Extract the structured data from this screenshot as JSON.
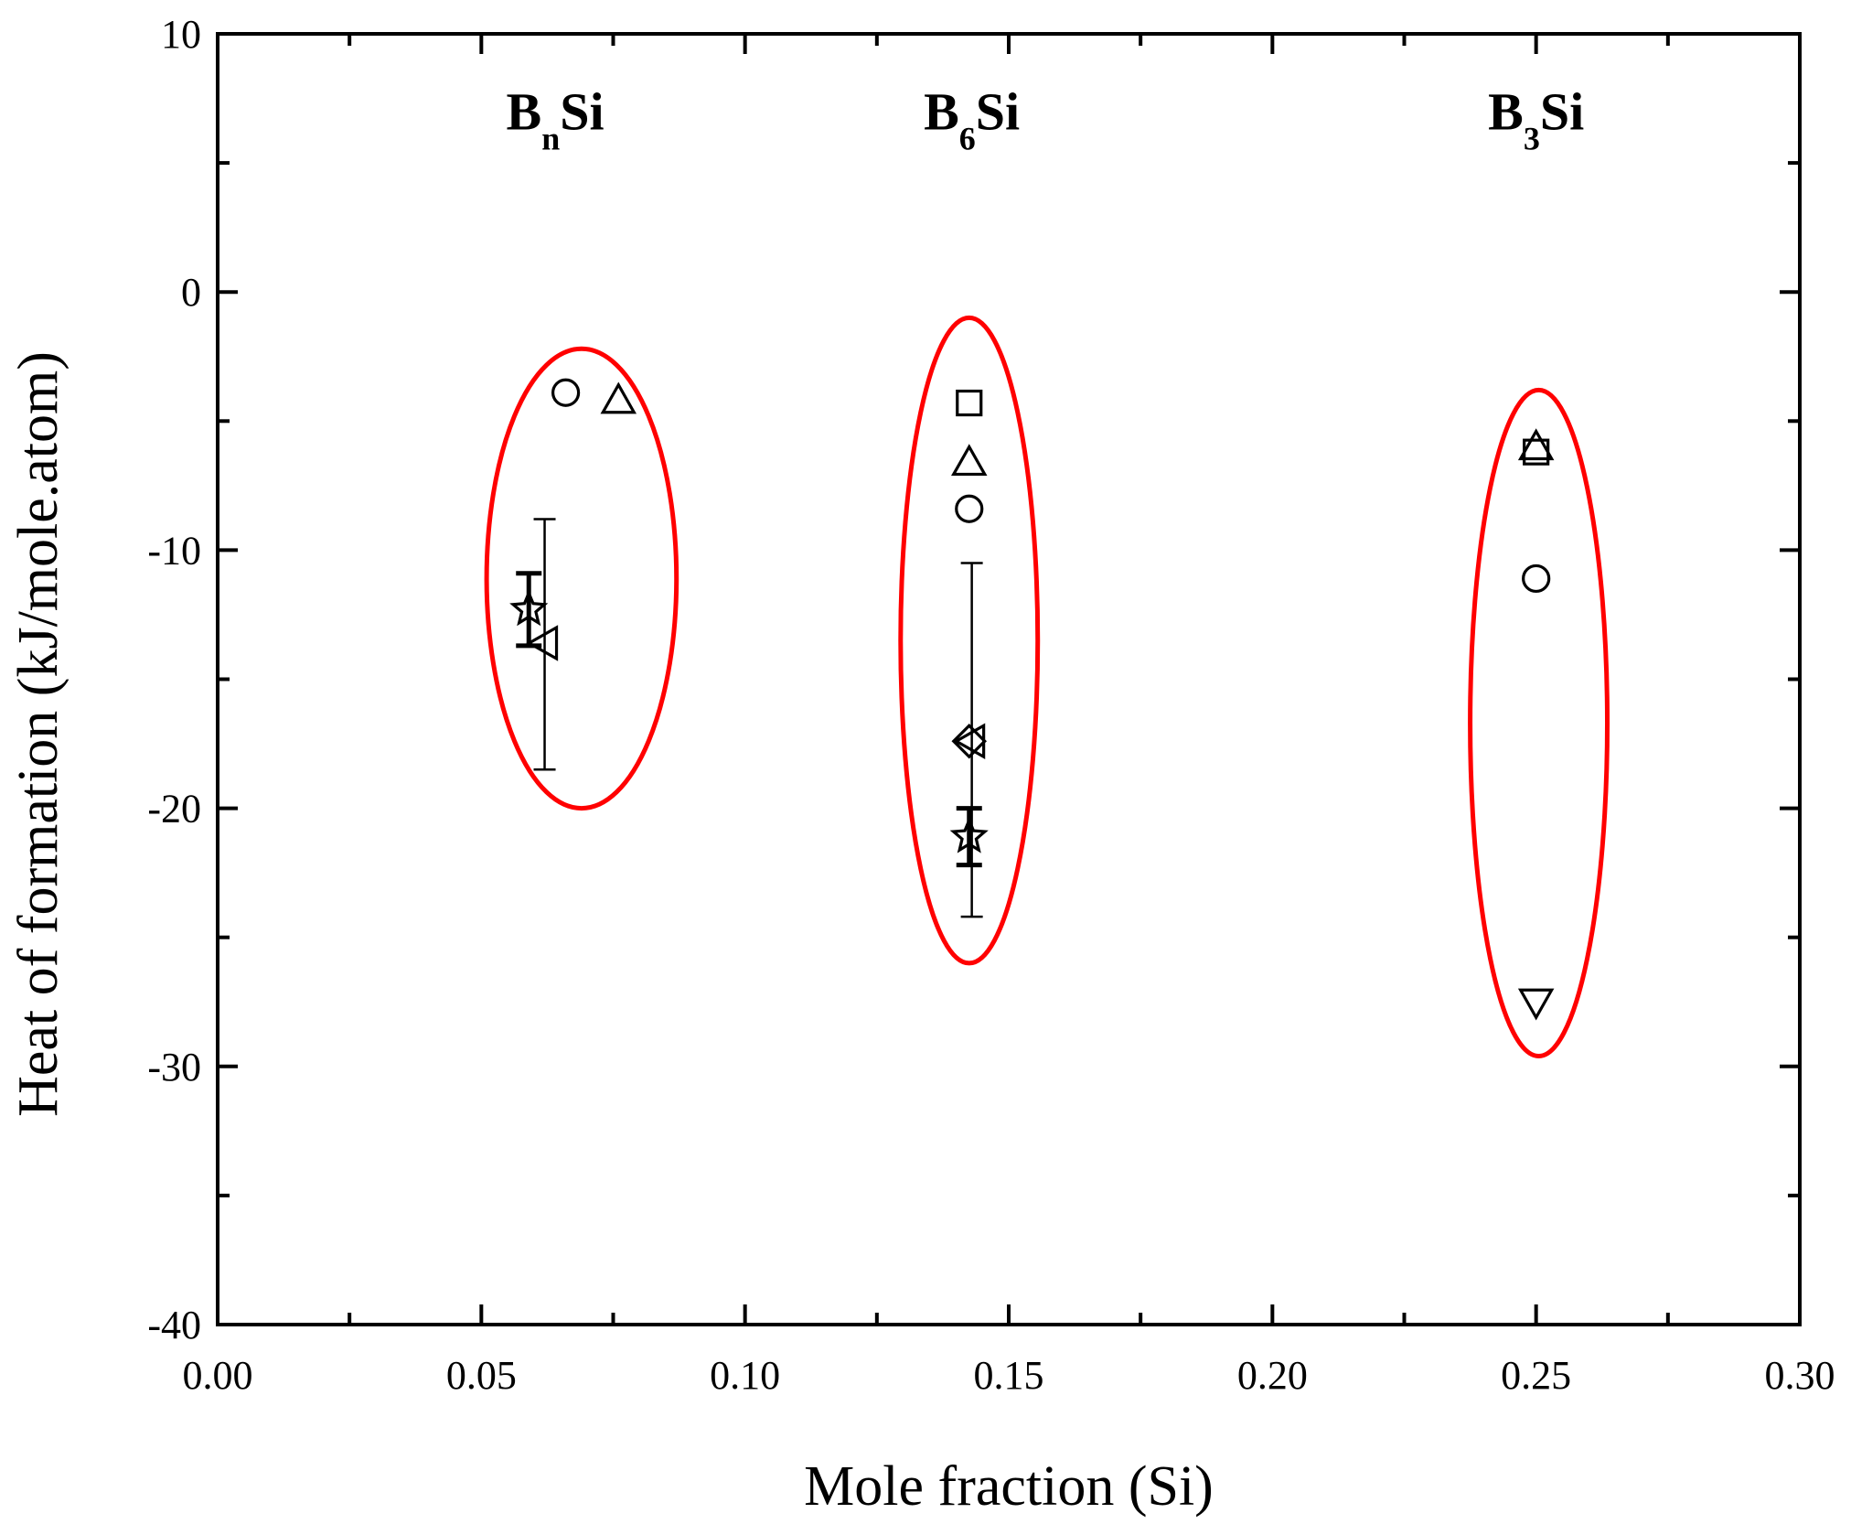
{
  "chart_data": {
    "type": "scatter",
    "title": "",
    "xlabel": "Mole fraction (Si)",
    "ylabel": "Heat of formation (kJ/mole.atom)",
    "xlim": [
      0.0,
      0.3
    ],
    "ylim": [
      -40,
      10
    ],
    "x_ticks": [
      0.0,
      0.05,
      0.1,
      0.15,
      0.2,
      0.25,
      0.3
    ],
    "x_tick_labels": [
      "0.00",
      "0.05",
      "0.10",
      "0.15",
      "0.20",
      "0.25",
      "0.30"
    ],
    "y_ticks": [
      10,
      0,
      -10,
      -20,
      -30,
      -40
    ],
    "y_tick_labels": [
      "10",
      "0",
      "-10",
      "-20",
      "-30",
      "-40"
    ],
    "grid": false,
    "legend": "none",
    "colors": {
      "axis": "#000000",
      "ellipse": "#ff0000",
      "marker": "#000000"
    },
    "groups": [
      {
        "base": "B",
        "sub": "n",
        "suffix": "Si",
        "x_center": 0.064,
        "y_label": 6.3
      },
      {
        "base": "B",
        "sub": "6",
        "suffix": "Si",
        "x_center": 0.143,
        "y_label": 6.3
      },
      {
        "base": "B",
        "sub": "3",
        "suffix": "Si",
        "x_center": 0.25,
        "y_label": 6.3
      }
    ],
    "ellipses": [
      {
        "cx": 0.069,
        "cy": -11.1,
        "rx": 0.018,
        "ry": 8.9
      },
      {
        "cx": 0.1425,
        "cy": -13.5,
        "rx": 0.013,
        "ry": 12.5
      },
      {
        "cx": 0.2505,
        "cy": -16.7,
        "rx": 0.013,
        "ry": 12.9
      }
    ],
    "points": [
      {
        "marker": "circle",
        "x": 0.066,
        "y": -3.9
      },
      {
        "marker": "triangle-up",
        "x": 0.076,
        "y": -4.2
      },
      {
        "marker": "star",
        "x": 0.059,
        "y": -12.3,
        "err_low": 1.4,
        "err_high": 1.4,
        "err_style": "thick"
      },
      {
        "marker": "triangle-left",
        "x": 0.062,
        "y": -13.6,
        "err_low": 4.9,
        "err_high": 4.8,
        "err_style": "thin"
      },
      {
        "marker": "square",
        "x": 0.1425,
        "y": -4.3
      },
      {
        "marker": "triangle-up",
        "x": 0.1425,
        "y": -6.6
      },
      {
        "marker": "circle",
        "x": 0.1425,
        "y": -8.4
      },
      {
        "marker": "diamond",
        "x": 0.1425,
        "y": -17.4
      },
      {
        "marker": "triangle-left",
        "x": 0.143,
        "y": -17.4,
        "err_low": 6.8,
        "err_high": 6.9,
        "err_style": "thin"
      },
      {
        "marker": "star",
        "x": 0.1425,
        "y": -21.1,
        "err_low": 1.1,
        "err_high": 1.1,
        "err_style": "thick"
      },
      {
        "marker": "triangle-up",
        "x": 0.25,
        "y": -6.0
      },
      {
        "marker": "square",
        "x": 0.25,
        "y": -6.2
      },
      {
        "marker": "circle",
        "x": 0.25,
        "y": -11.1
      },
      {
        "marker": "triangle-down",
        "x": 0.25,
        "y": -27.5
      }
    ]
  }
}
